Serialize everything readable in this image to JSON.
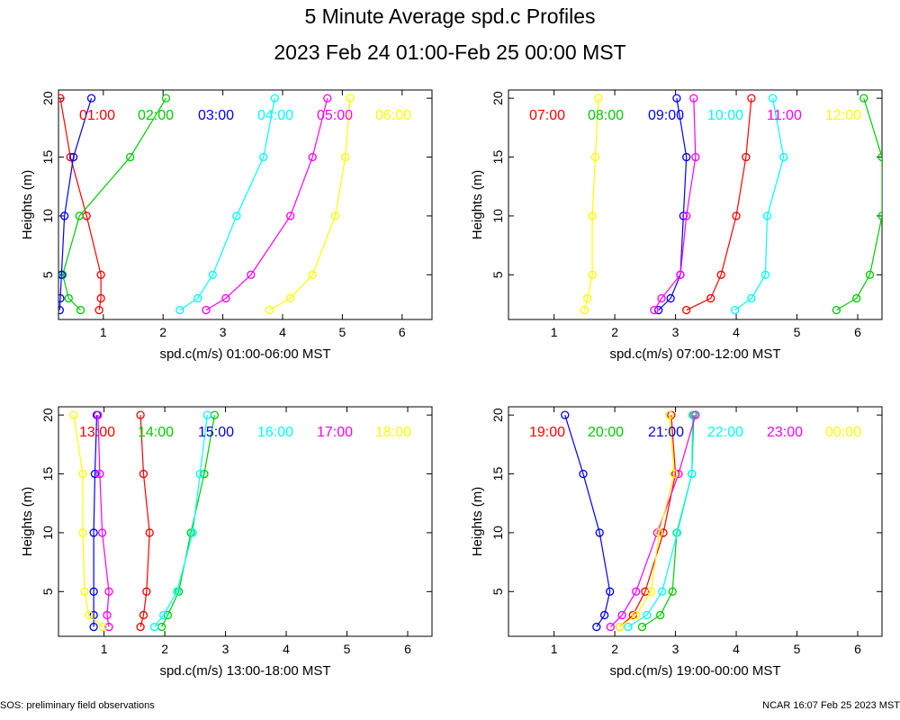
{
  "title": "5 Minute Average spd.c Profiles",
  "subtitle": "2023 Feb 24 01:00-Feb 25 00:00 MST",
  "footer_left": "SOS: preliminary field observations",
  "footer_right": "NCAR 16:07 Feb 25 2023 MST",
  "colors": [
    "#ff0000",
    "#00cc00",
    "#0000ff",
    "#00ffff",
    "#ff00ff",
    "#ffff00"
  ],
  "chart_data": [
    {
      "type": "line",
      "xlabel": "spd.c(m/s) 01:00-06:00 MST",
      "ylabel": "Heights (m)",
      "xlim": [
        0.25,
        6.5
      ],
      "ylim": [
        1.2,
        20.7
      ],
      "xticks": [
        1,
        2,
        3,
        4,
        5,
        6
      ],
      "yticks": [
        5,
        10,
        15,
        20
      ],
      "heights": [
        2,
        3,
        5,
        10,
        15,
        20
      ],
      "series": [
        {
          "name": "01:00",
          "values": [
            0.93,
            0.96,
            0.96,
            0.72,
            0.45,
            0.28
          ]
        },
        {
          "name": "02:00",
          "values": [
            0.62,
            0.42,
            0.32,
            0.6,
            1.45,
            2.05
          ]
        },
        {
          "name": "03:00",
          "values": [
            0.27,
            0.28,
            0.3,
            0.35,
            0.5,
            0.8
          ]
        },
        {
          "name": "04:00",
          "values": [
            2.28,
            2.58,
            2.83,
            3.23,
            3.68,
            3.87
          ]
        },
        {
          "name": "05:00",
          "values": [
            2.72,
            3.05,
            3.47,
            4.13,
            4.5,
            4.75
          ]
        },
        {
          "name": "06:00",
          "values": [
            3.78,
            4.13,
            4.5,
            4.88,
            5.05,
            5.13
          ]
        }
      ]
    },
    {
      "type": "line",
      "xlabel": "spd.c(m/s) 07:00-12:00 MST",
      "ylabel": "Heights (m)",
      "xlim": [
        0.25,
        6.4
      ],
      "ylim": [
        1.2,
        20.7
      ],
      "xticks": [
        1,
        2,
        3,
        4,
        5,
        6
      ],
      "yticks": [
        5,
        10,
        15,
        20
      ],
      "heights": [
        2,
        3,
        5,
        10,
        15,
        20
      ],
      "series": [
        {
          "name": "07:00",
          "values": [
            3.18,
            3.58,
            3.75,
            4.0,
            4.16,
            4.25
          ]
        },
        {
          "name": "08:00",
          "values": [
            5.65,
            5.98,
            6.2,
            6.4,
            6.4,
            6.1
          ]
        },
        {
          "name": "09:00",
          "values": [
            2.72,
            2.92,
            3.08,
            3.13,
            3.18,
            3.02
          ]
        },
        {
          "name": "10:00",
          "values": [
            3.98,
            4.25,
            4.48,
            4.51,
            4.78,
            4.6
          ]
        },
        {
          "name": "11:00",
          "values": [
            2.65,
            2.77,
            3.08,
            3.18,
            3.33,
            3.3
          ]
        },
        {
          "name": "12:00",
          "values": [
            1.5,
            1.55,
            1.63,
            1.63,
            1.68,
            1.73
          ]
        }
      ]
    },
    {
      "type": "line",
      "xlabel": "spd.c(m/s) 13:00-18:00 MST",
      "ylabel": "Heights (m)",
      "xlim": [
        0.25,
        6.4
      ],
      "ylim": [
        1.2,
        20.7
      ],
      "xticks": [
        1,
        2,
        3,
        4,
        5,
        6
      ],
      "yticks": [
        5,
        10,
        15,
        20
      ],
      "heights": [
        2,
        3,
        5,
        10,
        15,
        20
      ],
      "series": [
        {
          "name": "13:00",
          "values": [
            1.6,
            1.65,
            1.7,
            1.75,
            1.65,
            1.6
          ]
        },
        {
          "name": "14:00",
          "values": [
            1.95,
            2.05,
            2.23,
            2.43,
            2.65,
            2.82
          ]
        },
        {
          "name": "15:00",
          "values": [
            0.83,
            0.83,
            0.83,
            0.83,
            0.85,
            0.88
          ]
        },
        {
          "name": "16:00",
          "values": [
            1.83,
            1.98,
            2.2,
            2.46,
            2.58,
            2.7
          ]
        },
        {
          "name": "17:00",
          "values": [
            1.08,
            1.05,
            1.08,
            0.97,
            0.93,
            0.9
          ]
        },
        {
          "name": "18:00",
          "values": [
            0.98,
            0.75,
            0.68,
            0.65,
            0.65,
            0.5
          ]
        }
      ]
    },
    {
      "type": "line",
      "xlabel": "spd.c(m/s) 19:00-00:00 MST",
      "ylabel": "Heights (m)",
      "xlim": [
        0.25,
        6.4
      ],
      "ylim": [
        1.2,
        20.7
      ],
      "xticks": [
        1,
        2,
        3,
        4,
        5,
        6
      ],
      "yticks": [
        5,
        10,
        15,
        20
      ],
      "heights": [
        2,
        3,
        5,
        10,
        15,
        20
      ],
      "series": [
        {
          "name": "19:00",
          "values": [
            2.08,
            2.3,
            2.5,
            2.8,
            3.0,
            2.93
          ]
        },
        {
          "name": "20:00",
          "values": [
            2.45,
            2.75,
            2.95,
            3.02,
            3.27,
            3.3
          ]
        },
        {
          "name": "21:00",
          "values": [
            1.7,
            1.83,
            1.92,
            1.75,
            1.48,
            1.18
          ]
        },
        {
          "name": "22:00",
          "values": [
            2.22,
            2.53,
            2.78,
            3.03,
            3.27,
            3.28
          ]
        },
        {
          "name": "23:00",
          "values": [
            1.93,
            2.12,
            2.35,
            2.7,
            3.05,
            3.33
          ]
        },
        {
          "name": "00:00",
          "values": [
            2.08,
            2.35,
            2.6,
            2.73,
            2.98,
            2.9
          ]
        }
      ]
    }
  ]
}
